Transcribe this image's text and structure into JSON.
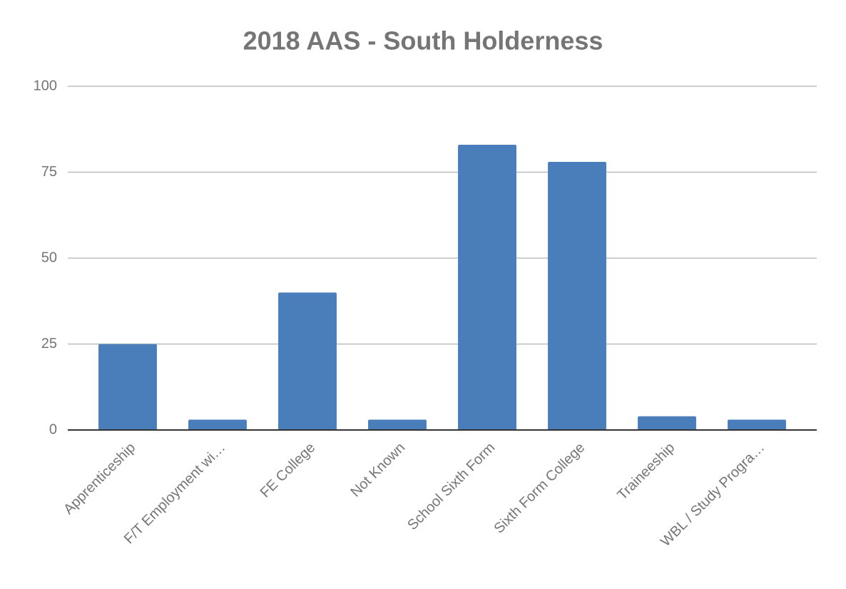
{
  "chart_data": {
    "type": "bar",
    "title": "2018 AAS - South Holderness",
    "categories": [
      "Apprenticeship",
      "F/T Employment wi…",
      "FE College",
      "Not Known",
      "School Sixth Form",
      "Sixth Form College",
      "Traineeship",
      "WBL / Study Progra…"
    ],
    "values": [
      25,
      3,
      40,
      3,
      83,
      78,
      4,
      3
    ],
    "color": "#4a7ebb",
    "ylim": [
      0,
      100
    ],
    "yticks": [
      0,
      25,
      50,
      75,
      100
    ],
    "grid": true
  }
}
